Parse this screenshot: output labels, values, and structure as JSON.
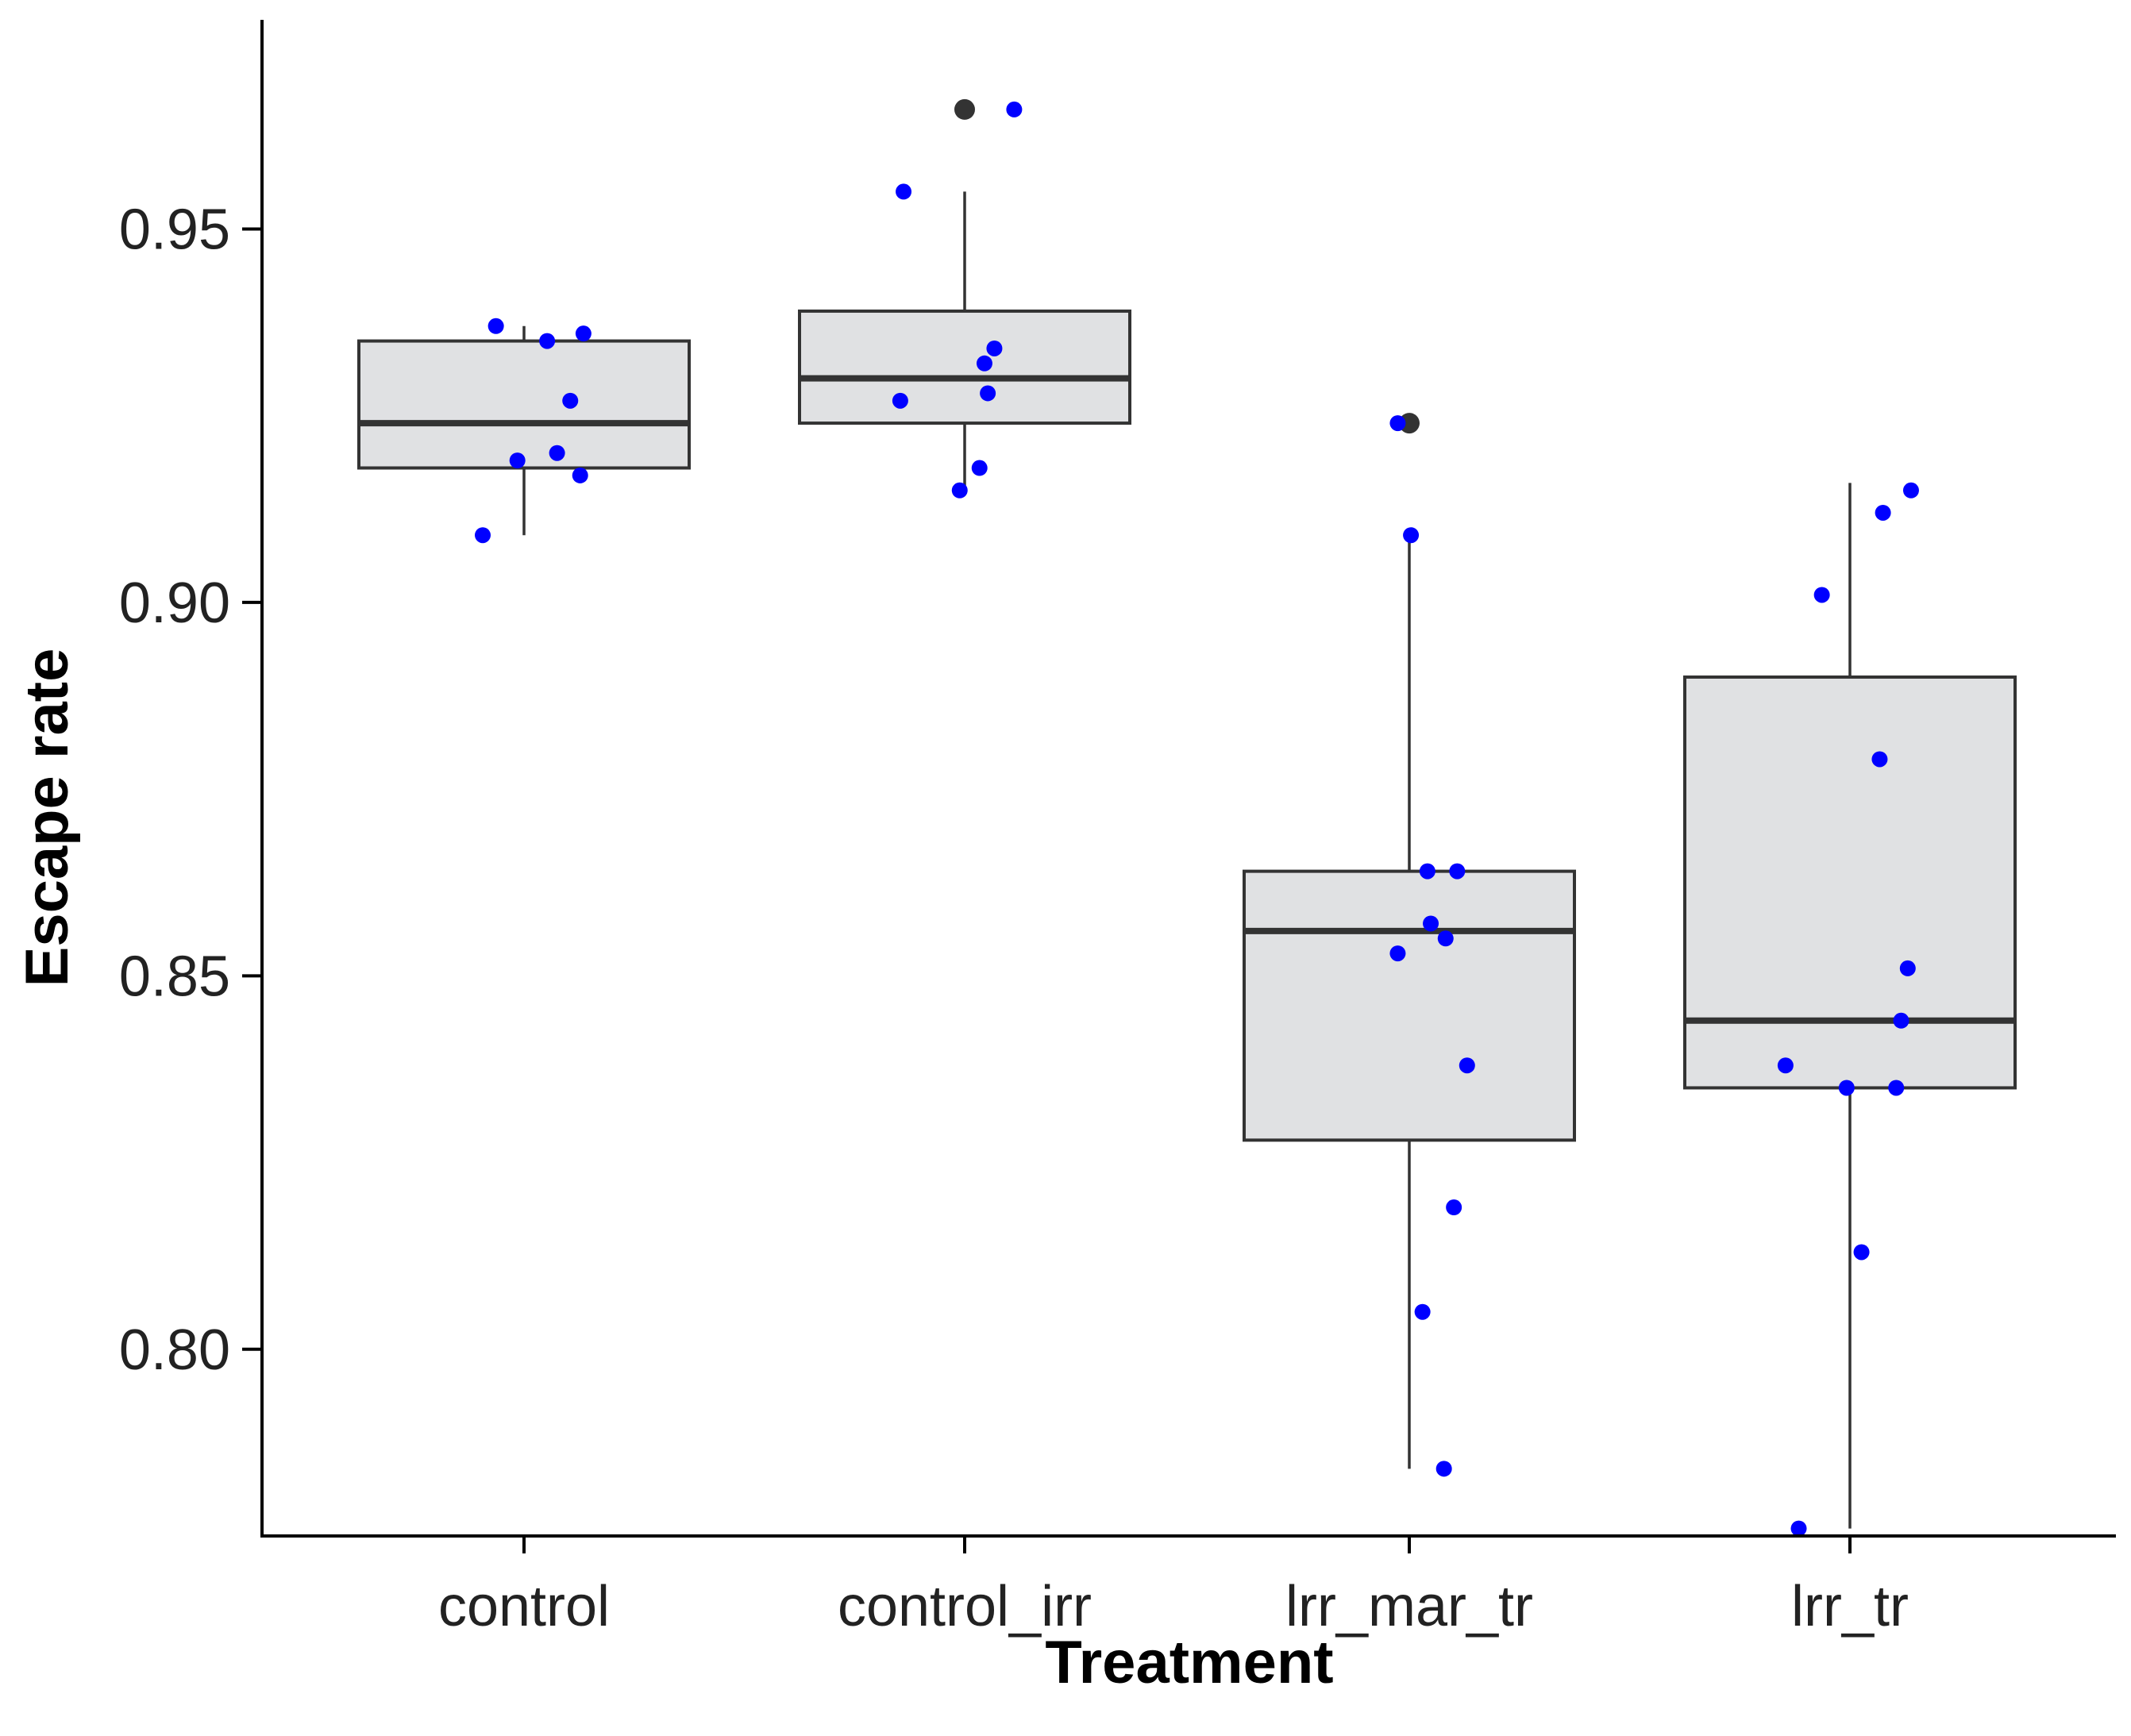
{
  "chart_data": {
    "type": "boxplot",
    "title": "",
    "xlabel": "Treatment",
    "ylabel": "Escape rate",
    "categories": [
      "control",
      "control_irr",
      "lrr_mar_tr",
      "lrr_tr"
    ],
    "ylim": [
      0.775,
      0.978
    ],
    "yticks": [
      0.8,
      0.85,
      0.9,
      0.95
    ],
    "ytick_labels": [
      "0.80",
      "0.85",
      "0.90",
      "0.95"
    ],
    "grid": false,
    "box_fill": "#e0e1e3",
    "box_stroke": "#333333",
    "point_color": "#0000ff",
    "outlier_color": "#333333",
    "boxes": [
      {
        "category": "control",
        "whisker_low": 0.909,
        "q1": 0.918,
        "median": 0.924,
        "q3": 0.935,
        "whisker_high": 0.937,
        "outliers": []
      },
      {
        "category": "control_irr",
        "whisker_low": 0.915,
        "q1": 0.924,
        "median": 0.93,
        "q3": 0.939,
        "whisker_high": 0.955,
        "outliers": [
          0.966
        ]
      },
      {
        "category": "lrr_mar_tr",
        "whisker_low": 0.784,
        "q1": 0.828,
        "median": 0.856,
        "q3": 0.864,
        "whisker_high": 0.909,
        "outliers": [
          0.924
        ]
      },
      {
        "category": "lrr_tr",
        "whisker_low": 0.776,
        "q1": 0.835,
        "median": 0.844,
        "q3": 0.89,
        "whisker_high": 0.916,
        "outliers": []
      }
    ],
    "points": [
      {
        "category": "control",
        "values": [
          0.909,
          0.937,
          0.919,
          0.935,
          0.92,
          0.927,
          0.936,
          0.917
        ],
        "jitter": [
          -0.25,
          -0.17,
          -0.04,
          0.14,
          0.2,
          0.28,
          0.36,
          0.34
        ]
      },
      {
        "category": "control_irr",
        "values": [
          0.966,
          0.955,
          0.927,
          0.915,
          0.918,
          0.932,
          0.928,
          0.934
        ],
        "jitter": [
          0.3,
          -0.37,
          -0.39,
          -0.03,
          0.09,
          0.12,
          0.14,
          0.18
        ]
      },
      {
        "category": "lrr_mar_tr",
        "values": [
          0.924,
          0.909,
          0.864,
          0.864,
          0.857,
          0.855,
          0.853,
          0.838,
          0.819,
          0.805,
          0.784
        ],
        "jitter": [
          -0.07,
          0.01,
          0.11,
          0.29,
          0.13,
          0.22,
          -0.07,
          0.35,
          0.27,
          0.08,
          0.21
        ]
      },
      {
        "category": "lrr_tr",
        "values": [
          0.915,
          0.912,
          0.901,
          0.879,
          0.851,
          0.844,
          0.838,
          0.835,
          0.835,
          0.813,
          0.776
        ],
        "jitter": [
          0.37,
          0.2,
          -0.17,
          0.18,
          0.35,
          0.31,
          -0.39,
          -0.02,
          0.28,
          0.07,
          -0.31
        ]
      }
    ]
  }
}
